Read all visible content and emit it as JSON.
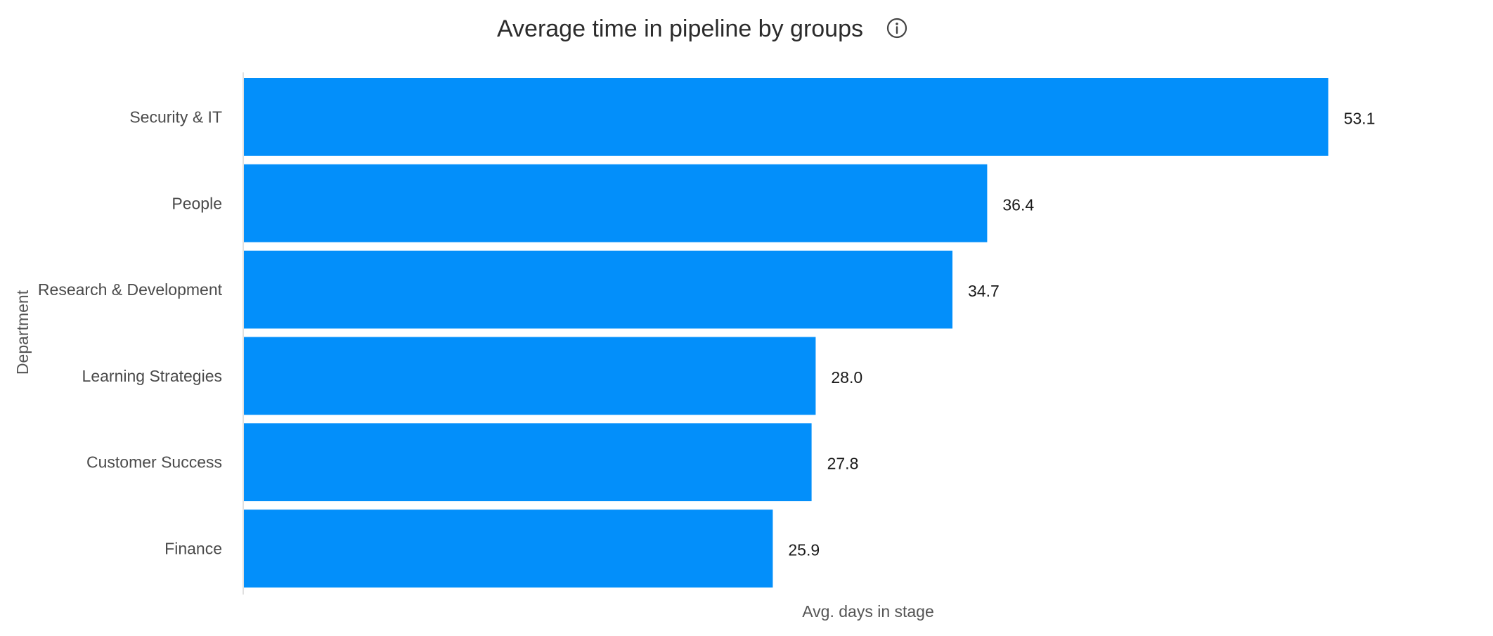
{
  "chart_data": {
    "type": "bar",
    "orientation": "horizontal",
    "title": "Average time in pipeline by groups",
    "title_icon": "info-icon",
    "xlabel": "Avg. days in stage",
    "ylabel": "Department",
    "categories": [
      "Security & IT",
      "People",
      "Research & Development",
      "Learning Strategies",
      "Customer Success",
      "Finance"
    ],
    "values": [
      53.1,
      36.4,
      34.7,
      28.0,
      27.8,
      25.9
    ],
    "value_labels": [
      "53.1",
      "36.4",
      "34.7",
      "28.0",
      "27.8",
      "25.9"
    ],
    "xlim": [
      0,
      60
    ],
    "grid": false,
    "legend": "none",
    "bar_color": "#038FFA"
  }
}
